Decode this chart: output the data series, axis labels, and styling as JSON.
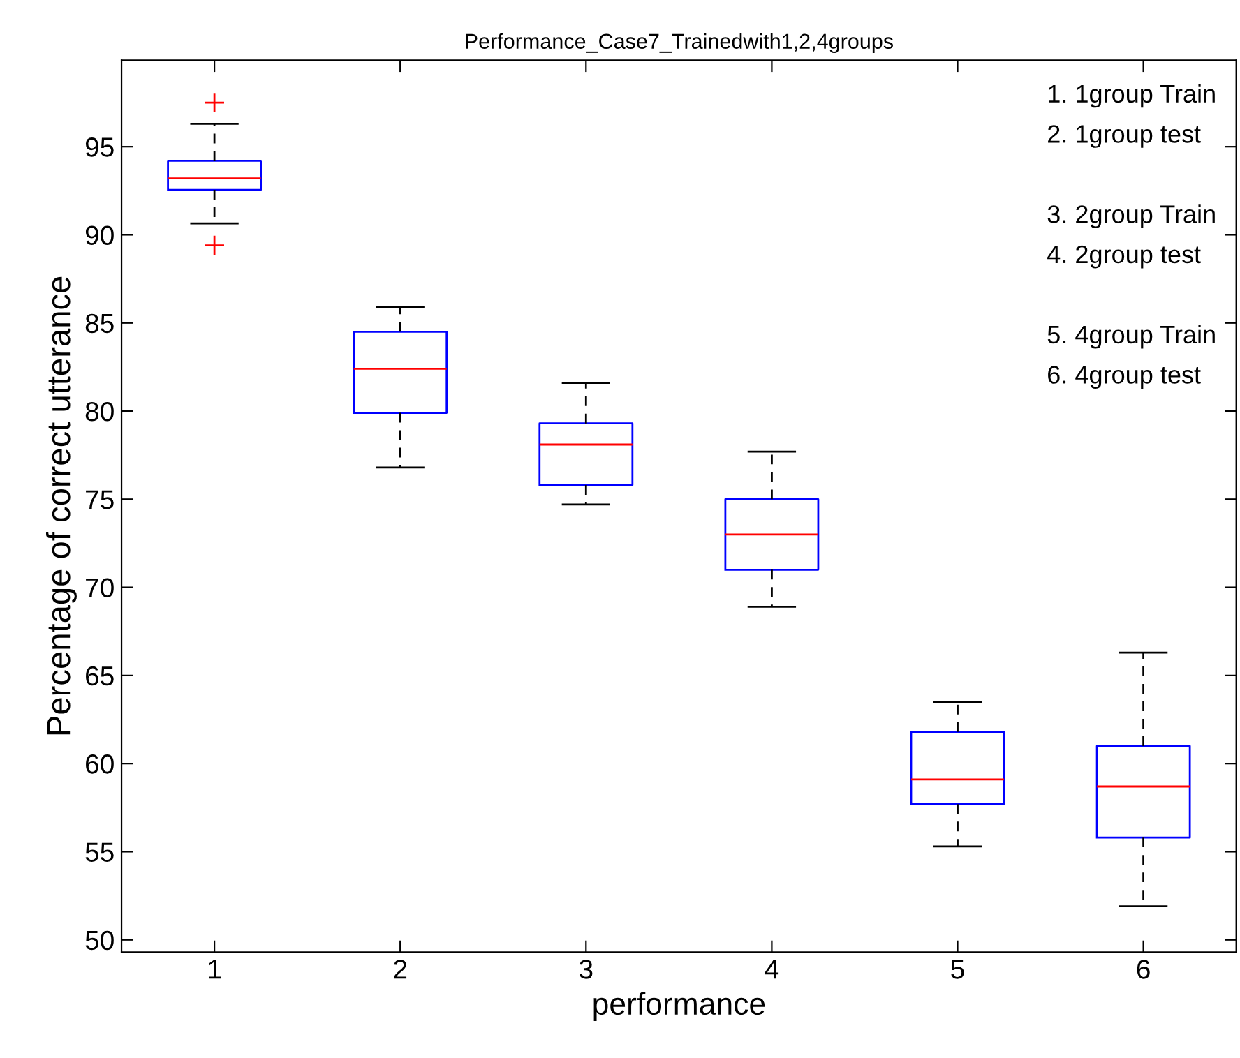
{
  "chart_data": {
    "type": "box",
    "title": "Performance_Case7_Trainedwith1,2,4groups",
    "xlabel": "performance",
    "ylabel": "Percentage of correct utterance",
    "categories": [
      "1",
      "2",
      "3",
      "4",
      "5",
      "6"
    ],
    "boxes": [
      {
        "low": 90.65,
        "q1": 92.55,
        "median": 93.2,
        "q3": 94.2,
        "high": 96.3,
        "outliers": [
          97.5,
          89.4
        ]
      },
      {
        "low": 76.8,
        "q1": 79.9,
        "median": 82.4,
        "q3": 84.5,
        "high": 85.9
      },
      {
        "low": 74.7,
        "q1": 75.8,
        "median": 78.1,
        "q3": 79.3,
        "high": 81.6
      },
      {
        "low": 68.9,
        "q1": 71.0,
        "median": 73.0,
        "q3": 75.0,
        "high": 77.7
      },
      {
        "low": 55.3,
        "q1": 57.7,
        "median": 59.1,
        "q3": 61.8,
        "high": 63.5
      },
      {
        "low": 51.9,
        "q1": 55.8,
        "median": 58.7,
        "q3": 61.0,
        "high": 66.3
      }
    ],
    "color": "#0000ff",
    "ylim": [
      49.3,
      99.9
    ],
    "yticks": [
      50,
      55,
      60,
      65,
      70,
      75,
      80,
      85,
      90,
      95
    ],
    "annotations": [
      "1. 1group Train",
      "2. 1group test",
      "3. 2group Train",
      "4. 2group test",
      "5. 4group Train",
      "6. 4group test"
    ],
    "grid": false,
    "legend": false
  }
}
